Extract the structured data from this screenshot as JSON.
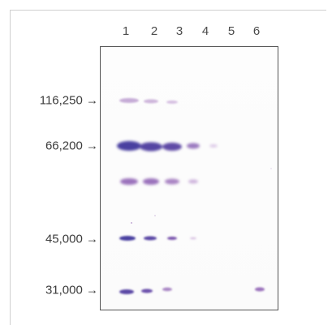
{
  "lanes": [
    "1",
    "2",
    "3",
    "4",
    "5",
    "6"
  ],
  "markers": [
    {
      "label": "116,250 →"
    },
    {
      "label": "66,200 →"
    },
    {
      "label": "45,000 →"
    },
    {
      "label": "31,000 →"
    }
  ],
  "colors": {
    "band_dark": "#4a3fa0",
    "band_mid": "#8a5bb0",
    "band_light": "#c79ad0",
    "gel_border": "#555555"
  }
}
